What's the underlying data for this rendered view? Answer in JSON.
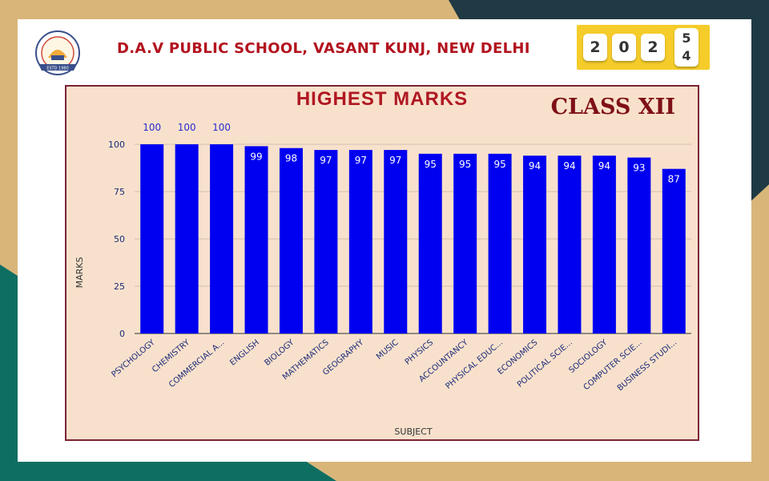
{
  "header": {
    "school_name": "D.A.V PUBLIC SCHOOL, VASANT KUNJ, NEW DELHI",
    "year_tiles": [
      "2",
      "0",
      "2"
    ],
    "year_split": [
      "5",
      "4"
    ],
    "logo_icon": "school-emblem-icon",
    "logo_text": "ESTD 1980"
  },
  "colors": {
    "bar": "#0000f0",
    "frame_border": "#7b2235",
    "chart_bg": "#f8e1cc",
    "title": "#b01822",
    "school_name": "#b3121e",
    "badge": "#f5cc2a"
  },
  "chart_data": {
    "type": "bar",
    "title": "HIGHEST MARKS",
    "subtitle": "CLASS XII",
    "xlabel": "SUBJECT",
    "ylabel": "MARKS",
    "ylim": [
      0,
      100
    ],
    "yticks": [
      0,
      25,
      50,
      75,
      100
    ],
    "grid": true,
    "categories": [
      "PSYCHOLOGY",
      "CHEMISTRY",
      "COMMERCIAL A...",
      "ENGLISH",
      "BIOLOGY",
      "MATHEMATICS",
      "GEOGRAPHY",
      "MUSIC",
      "PHYSICS",
      "ACCOUNTANCY",
      "PHYSICAL EDUC...",
      "ECONOMICS",
      "POLITICAL SCIE...",
      "SOCIOLOGY",
      "COMPUTER SCIE...",
      "BUSINESS STUDI..."
    ],
    "values": [
      100,
      100,
      100,
      99,
      98,
      97,
      97,
      97,
      95,
      95,
      95,
      94,
      94,
      94,
      93,
      87
    ]
  }
}
